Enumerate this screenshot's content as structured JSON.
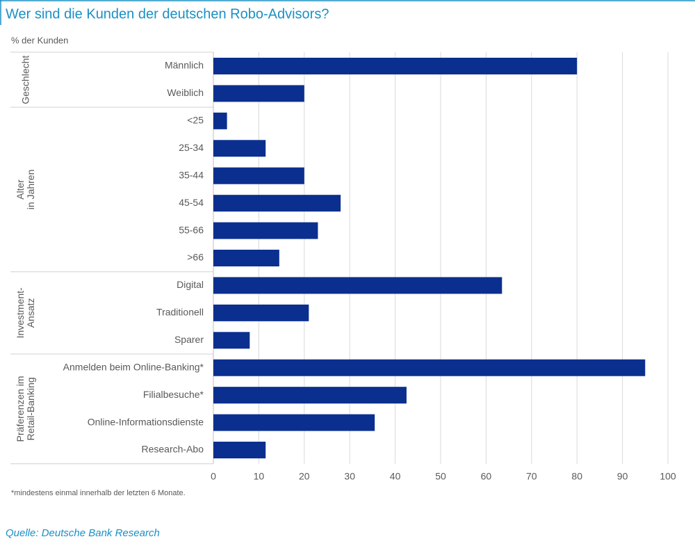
{
  "chart_data": {
    "type": "bar",
    "title": "Wer sind die Kunden der deutschen Robo-Advisors?",
    "subtitle": "% der Kunden",
    "footnote": "*mindestens einmal innerhalb der letzten 6 Monate.",
    "source": "Quelle: Deutsche Bank Research",
    "color": "#0b2f8f",
    "groups": [
      {
        "label": [
          "Geschlecht"
        ],
        "categories": [
          "Männlich",
          "Weiblich"
        ],
        "values": [
          80,
          20
        ]
      },
      {
        "label": [
          "Alter",
          "in Jahren"
        ],
        "categories": [
          "<25",
          "25-34",
          "35-44",
          "45-54",
          "55-66",
          ">66"
        ],
        "values": [
          3,
          11.5,
          20,
          28,
          23,
          14.5
        ]
      },
      {
        "label": [
          "Investment-",
          "Ansatz"
        ],
        "categories": [
          "Digital",
          "Traditionell",
          "Sparer"
        ],
        "values": [
          63.5,
          21,
          8
        ]
      },
      {
        "label": [
          "Präferenzen im",
          "Retail-Banking"
        ],
        "categories": [
          "Anmelden beim Online-Banking*",
          "Filialbesuche*",
          "Online-Informationsdienste",
          "Research-Abo"
        ],
        "values": [
          95,
          42.5,
          35.5,
          11.5
        ]
      }
    ],
    "xlim": [
      0,
      100
    ],
    "xticks": [
      0,
      10,
      20,
      30,
      40,
      50,
      60,
      70,
      80,
      90,
      100
    ],
    "grid": true
  }
}
